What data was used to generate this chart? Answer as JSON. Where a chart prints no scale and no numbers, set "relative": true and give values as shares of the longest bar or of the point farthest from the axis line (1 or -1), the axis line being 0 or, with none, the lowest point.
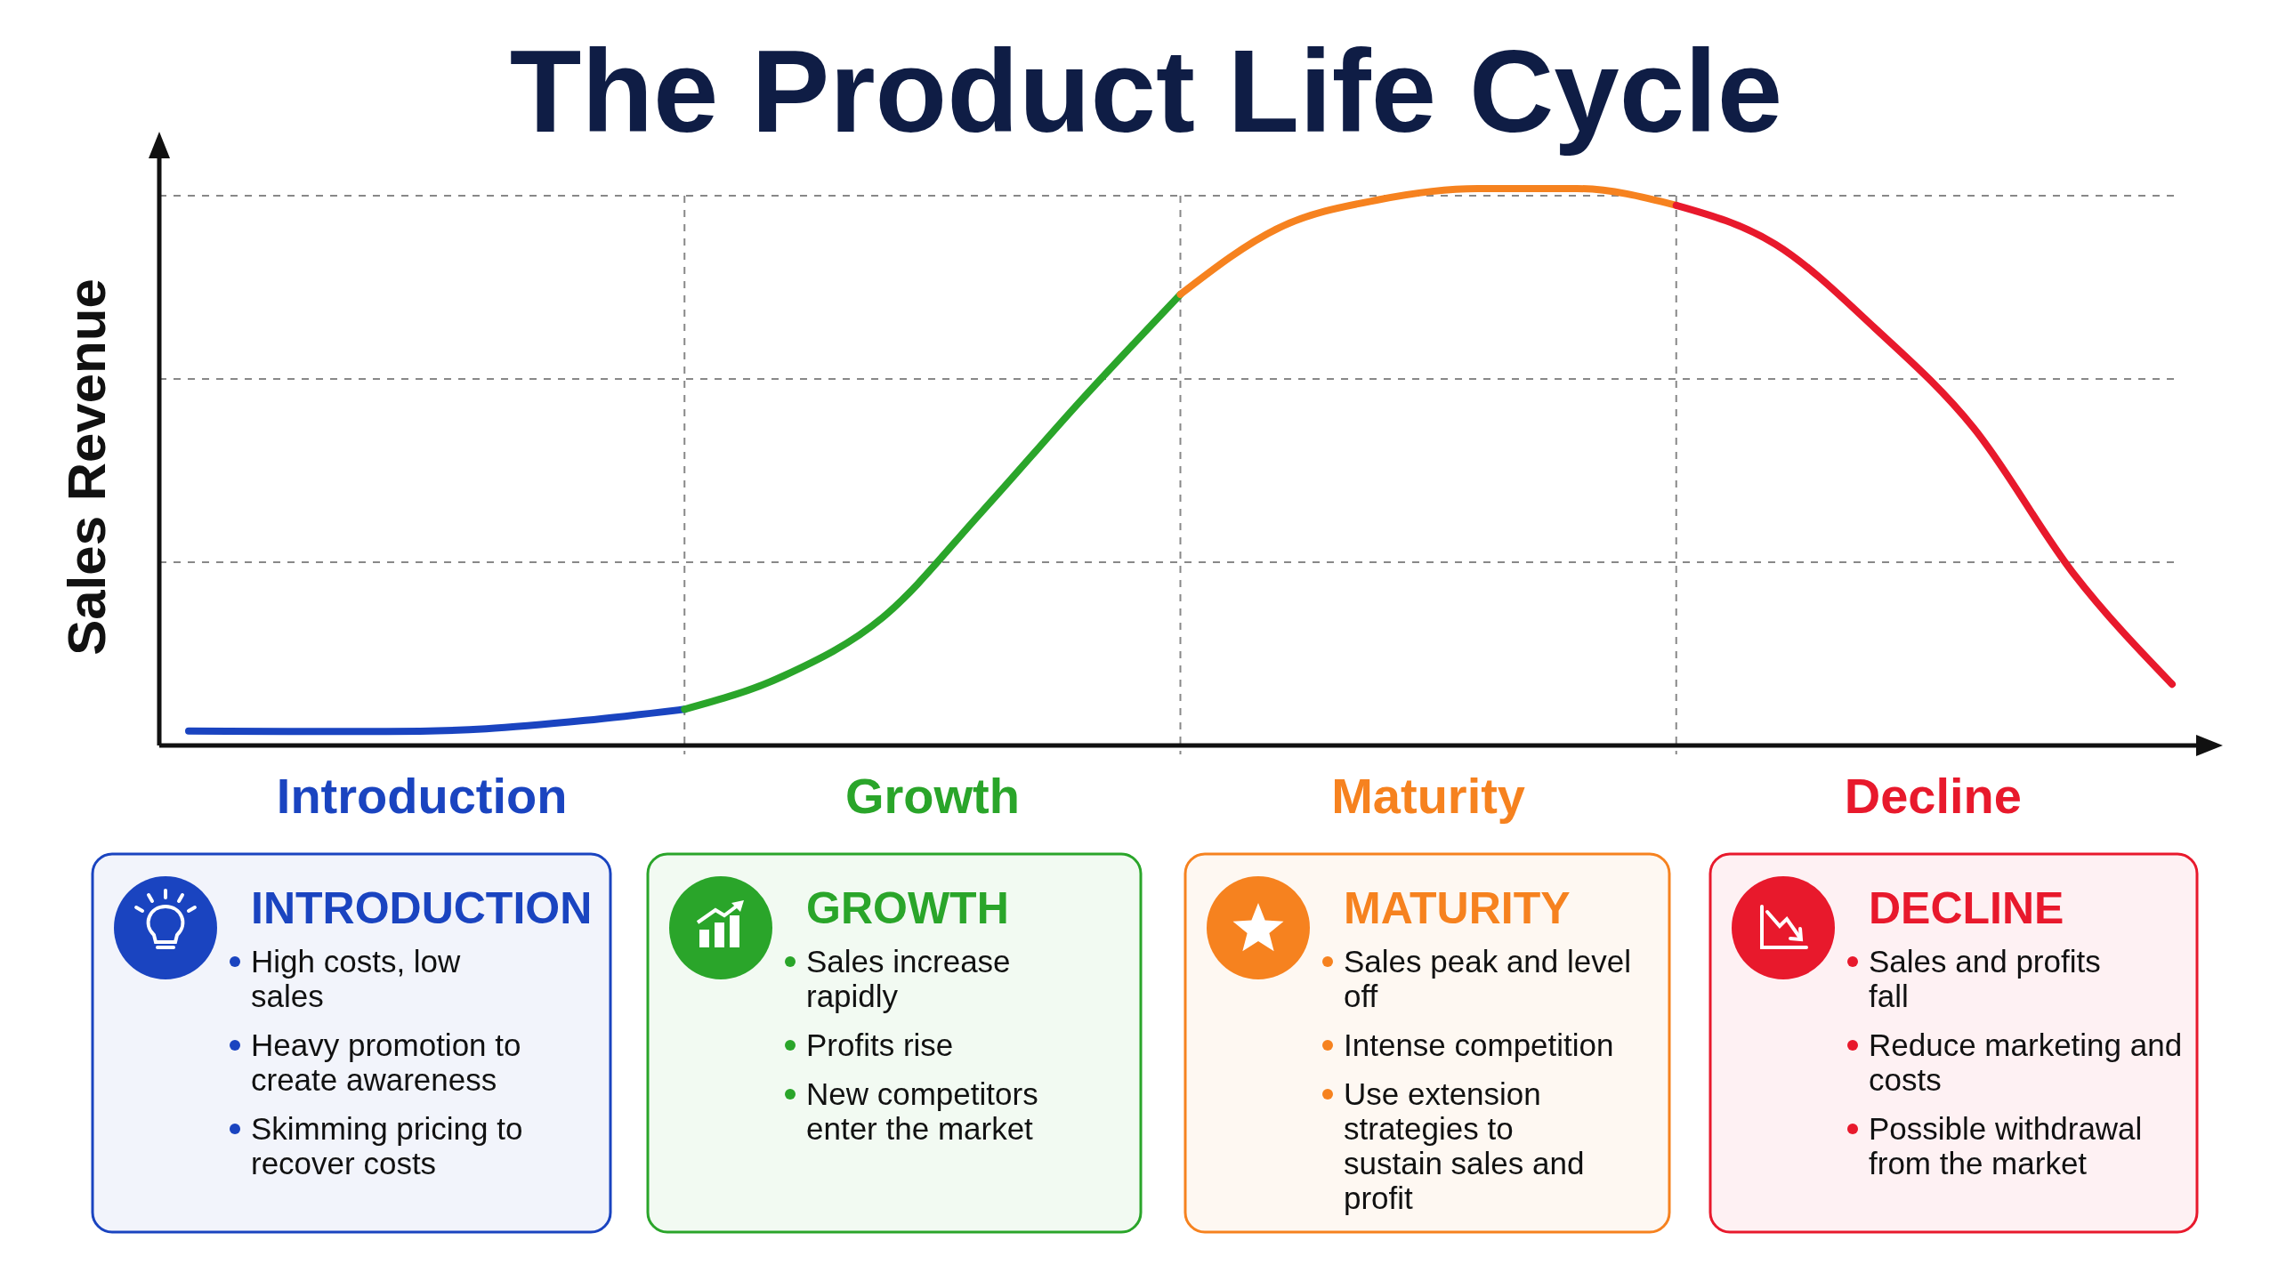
{
  "chart_data": {
    "type": "line",
    "title": "The Product Life Cycle",
    "ylabel": "Sales Revenue",
    "relative": true,
    "grid": true,
    "categories": [
      null,
      null,
      null,
      null,
      null,
      null,
      null,
      null,
      null,
      null,
      null,
      null,
      null,
      null,
      null,
      null,
      null,
      null,
      null,
      null,
      null
    ],
    "series": [
      {
        "name": "Introduction",
        "color": "#1a44c0",
        "values": [
          0.026,
          0.025,
          0.025,
          0.03,
          0.045,
          0.065,
          null,
          null,
          null,
          null,
          null,
          null,
          null,
          null,
          null,
          null,
          null,
          null,
          null,
          null,
          null
        ]
      },
      {
        "name": "Growth",
        "color": "#2aa52a",
        "values": [
          null,
          null,
          null,
          null,
          null,
          0.065,
          0.125,
          0.23,
          0.42,
          0.62,
          0.81,
          null,
          null,
          null,
          null,
          null,
          null,
          null,
          null,
          null,
          null
        ]
      },
      {
        "name": "Maturity",
        "color": "#f6821f",
        "values": [
          null,
          null,
          null,
          null,
          null,
          null,
          null,
          null,
          null,
          null,
          0.81,
          0.93,
          0.98,
          1.0,
          1.0,
          0.97,
          null,
          null,
          null,
          null,
          null
        ]
      },
      {
        "name": "Decline",
        "color": "#e8192c",
        "values": [
          null,
          null,
          null,
          null,
          null,
          null,
          null,
          null,
          null,
          null,
          null,
          null,
          null,
          null,
          null,
          0.97,
          0.9,
          0.75,
          0.57,
          0.31,
          0.11
        ]
      }
    ],
    "annotations": [
      "INTRODUCTION",
      "High costs, low sales",
      "Heavy promotion to create awareness",
      "Skimming pricing to recover costs",
      "GROWTH",
      "Sales increase rapidly",
      "Profits rise",
      "New competitors enter the market",
      "MATURITY",
      "Sales peak and level off",
      "Intense competition",
      "Use extension strategies to sustain sales and profit",
      "DECLINE",
      "Sales and profits fall",
      "Reduce marketing and costs",
      "Possible withdrawal from the market"
    ]
  }
}
